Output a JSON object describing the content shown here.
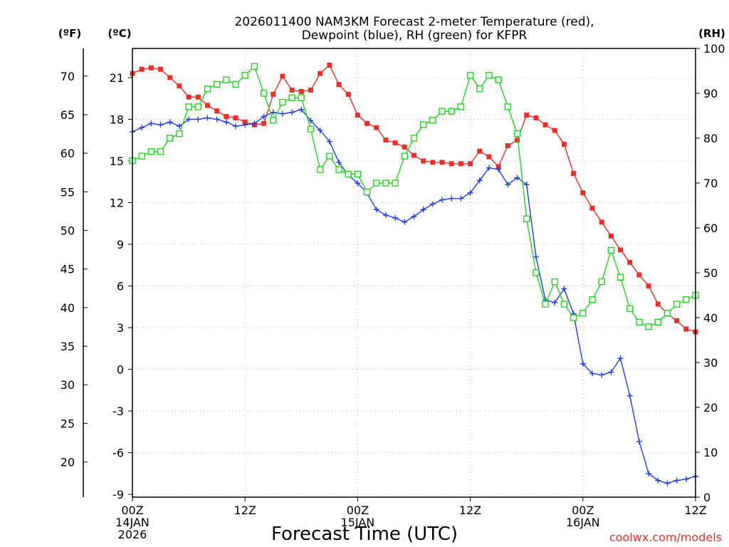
{
  "header": {
    "title_line1": "2026011400 NAM3KM Forecast 2-meter Temperature (red),",
    "title_line2": "Dewpoint (blue), RH (green) for KFPR"
  },
  "axes": {
    "f_unit": "(ºF)",
    "c_unit": "(ºC)",
    "rh_unit": "(RH)",
    "xlabel": "Forecast Time (UTC)"
  },
  "watermark": "coolwx.com/models",
  "chart_data": {
    "type": "line",
    "title": "2026011400 NAM3KM Forecast 2-meter Temperature (red), Dewpoint (blue), RH (green) for KFPR",
    "xlabel": "Forecast Time (UTC)",
    "x_unit": "forecast hour",
    "xlim": [
      0,
      60
    ],
    "x_ticks": [
      {
        "hour": 0,
        "labels": [
          "00Z",
          "14JAN",
          "2026"
        ]
      },
      {
        "hour": 12,
        "labels": [
          "12Z"
        ]
      },
      {
        "hour": 24,
        "labels": [
          "00Z",
          "15JAN"
        ]
      },
      {
        "hour": 36,
        "labels": [
          "12Z"
        ]
      },
      {
        "hour": 48,
        "labels": [
          "00Z",
          "16JAN"
        ]
      },
      {
        "hour": 60,
        "labels": [
          "12Z"
        ]
      }
    ],
    "y_left_c": {
      "label": "(ºC)",
      "range": [
        -9.2,
        23.1
      ],
      "ticks": [
        21,
        18,
        15,
        12,
        9,
        6,
        3,
        0,
        -3,
        -6,
        -9
      ]
    },
    "y_left_f": {
      "label": "(ºF)",
      "ticks": [
        70,
        65,
        60,
        55,
        50,
        45,
        40,
        35,
        30,
        25,
        20
      ]
    },
    "y_right_rh": {
      "label": "(RH)",
      "range": [
        0,
        100
      ],
      "ticks": [
        100,
        90,
        80,
        70,
        60,
        50,
        40,
        30,
        20,
        10,
        0
      ]
    },
    "grid": true,
    "series": [
      {
        "name": "2-meter Temperature",
        "color": "#e8302a",
        "marker": "filled-square",
        "axis": "celsius",
        "values": [
          21.3,
          21.6,
          21.7,
          21.6,
          21.0,
          20.4,
          19.6,
          19.6,
          19.0,
          18.6,
          18.2,
          18.1,
          17.8,
          17.6,
          17.7,
          19.8,
          21.1,
          20.1,
          20.0,
          20.1,
          21.3,
          21.9,
          20.5,
          19.8,
          18.3,
          17.7,
          17.4,
          16.5,
          16.3,
          16.0,
          15.4,
          15.0,
          14.9,
          14.9,
          14.8,
          14.8,
          14.8,
          15.7,
          15.3,
          14.6,
          16.1,
          16.5,
          18.3,
          18.1,
          17.6,
          17.2,
          16.2,
          14.1,
          12.7,
          11.6,
          10.6,
          9.6,
          8.6,
          7.7,
          6.8,
          6.0,
          4.7,
          4.0,
          3.5,
          2.9,
          2.7
        ]
      },
      {
        "name": "Dewpoint",
        "color": "#1f3fe0",
        "marker": "plus",
        "axis": "celsius",
        "values": [
          17.1,
          17.4,
          17.7,
          17.6,
          17.8,
          17.5,
          18.0,
          18.0,
          18.1,
          18.0,
          17.8,
          17.5,
          17.6,
          17.7,
          18.2,
          18.5,
          18.4,
          18.5,
          18.7,
          17.9,
          17.2,
          16.4,
          14.9,
          14.0,
          13.4,
          12.7,
          11.5,
          11.1,
          10.9,
          10.6,
          11.0,
          11.5,
          11.9,
          12.2,
          12.3,
          12.3,
          12.7,
          13.6,
          14.5,
          14.4,
          13.3,
          13.8,
          13.3,
          8.1,
          5.0,
          4.8,
          5.8,
          4.0,
          0.4,
          -0.3,
          -0.4,
          -0.2,
          0.8,
          -1.9,
          -5.2,
          -7.5,
          -8.0,
          -8.2,
          -8.0,
          -7.9,
          -7.7
        ]
      },
      {
        "name": "RH",
        "color": "#22d322",
        "marker": "open-square",
        "axis": "rh",
        "values": [
          75,
          76,
          77,
          77,
          80,
          81,
          87,
          87,
          91,
          92,
          93,
          92,
          94,
          96,
          90,
          84,
          88,
          89,
          89,
          82,
          73,
          76,
          73,
          72,
          72,
          68,
          70,
          70,
          70,
          76,
          80,
          83,
          84,
          86,
          86,
          87,
          94,
          91,
          94,
          93,
          87,
          81,
          62,
          50,
          43,
          48,
          43,
          40,
          41,
          44,
          48,
          55,
          49,
          42,
          39,
          38,
          39,
          41,
          43,
          44,
          45
        ]
      }
    ]
  }
}
